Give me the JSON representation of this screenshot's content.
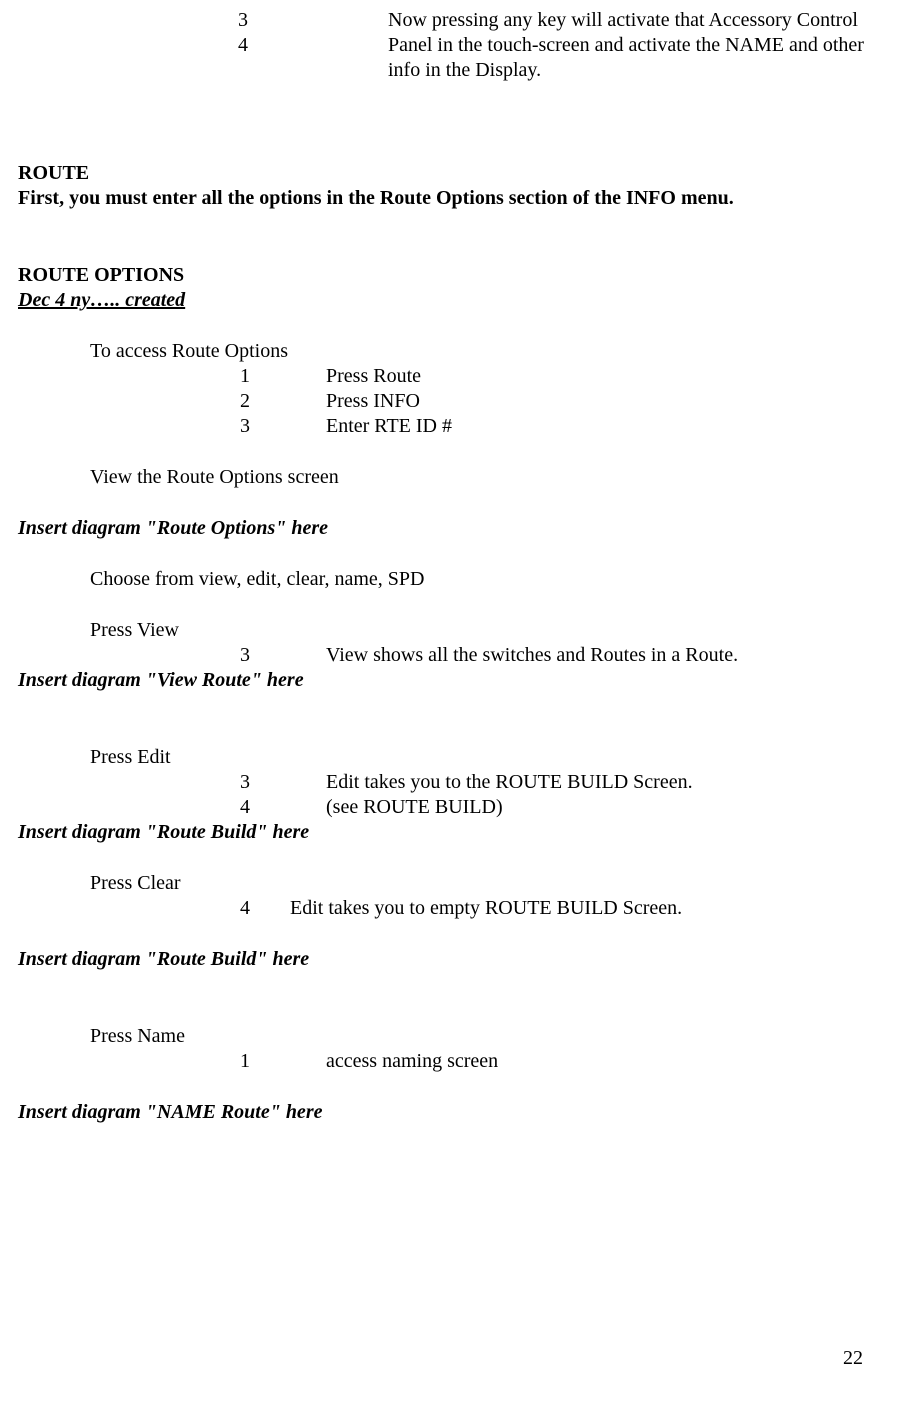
{
  "top_items": [
    {
      "num": "3",
      "txt": "Now pressing any key will activate that Accessory Control"
    },
    {
      "num": "4",
      "txt": "Panel in the touch-screen and activate the NAME and other info in the Display."
    }
  ],
  "route_heading": "ROUTE",
  "route_intro": "First, you must enter all the options in the Route Options section of the INFO menu.",
  "route_options_heading": "ROUTE OPTIONS",
  "created_note": "Dec 4 ny….. created",
  "access_route_options": "To access Route Options",
  "access_items": [
    {
      "num": "1",
      "txt": "Press Route"
    },
    {
      "num": "2",
      "txt": "Press INFO"
    },
    {
      "num": "3",
      "txt": "Enter RTE ID #"
    }
  ],
  "view_screen": "View the Route Options screen",
  "insert_route_options": "Insert diagram \"Route Options\" here",
  "choose_from": "Choose from view, edit, clear, name, SPD",
  "press_view": "Press View",
  "press_view_items": [
    {
      "num": "3",
      "txt": "View shows all the switches and Routes in a Route."
    }
  ],
  "insert_view_route": "Insert diagram \"View Route\" here",
  "press_edit": "Press Edit",
  "press_edit_items": [
    {
      "num": "3",
      "txt": "Edit takes you to the ROUTE BUILD Screen."
    },
    {
      "num": "4",
      "txt": "(see ROUTE BUILD)"
    }
  ],
  "insert_route_build_1": "Insert diagram \"Route Build\" here",
  "press_clear": "Press Clear",
  "press_clear_items": [
    {
      "num": "4",
      "txt": "Edit takes you to empty ROUTE BUILD Screen."
    }
  ],
  "insert_route_build_2": "Insert diagram \"Route Build\" here",
  "press_name": "Press Name",
  "press_name_items": [
    {
      "num": "1",
      "txt": "access naming screen"
    }
  ],
  "insert_name_route": "Insert diagram \"NAME Route\" here",
  "page_number": "22"
}
